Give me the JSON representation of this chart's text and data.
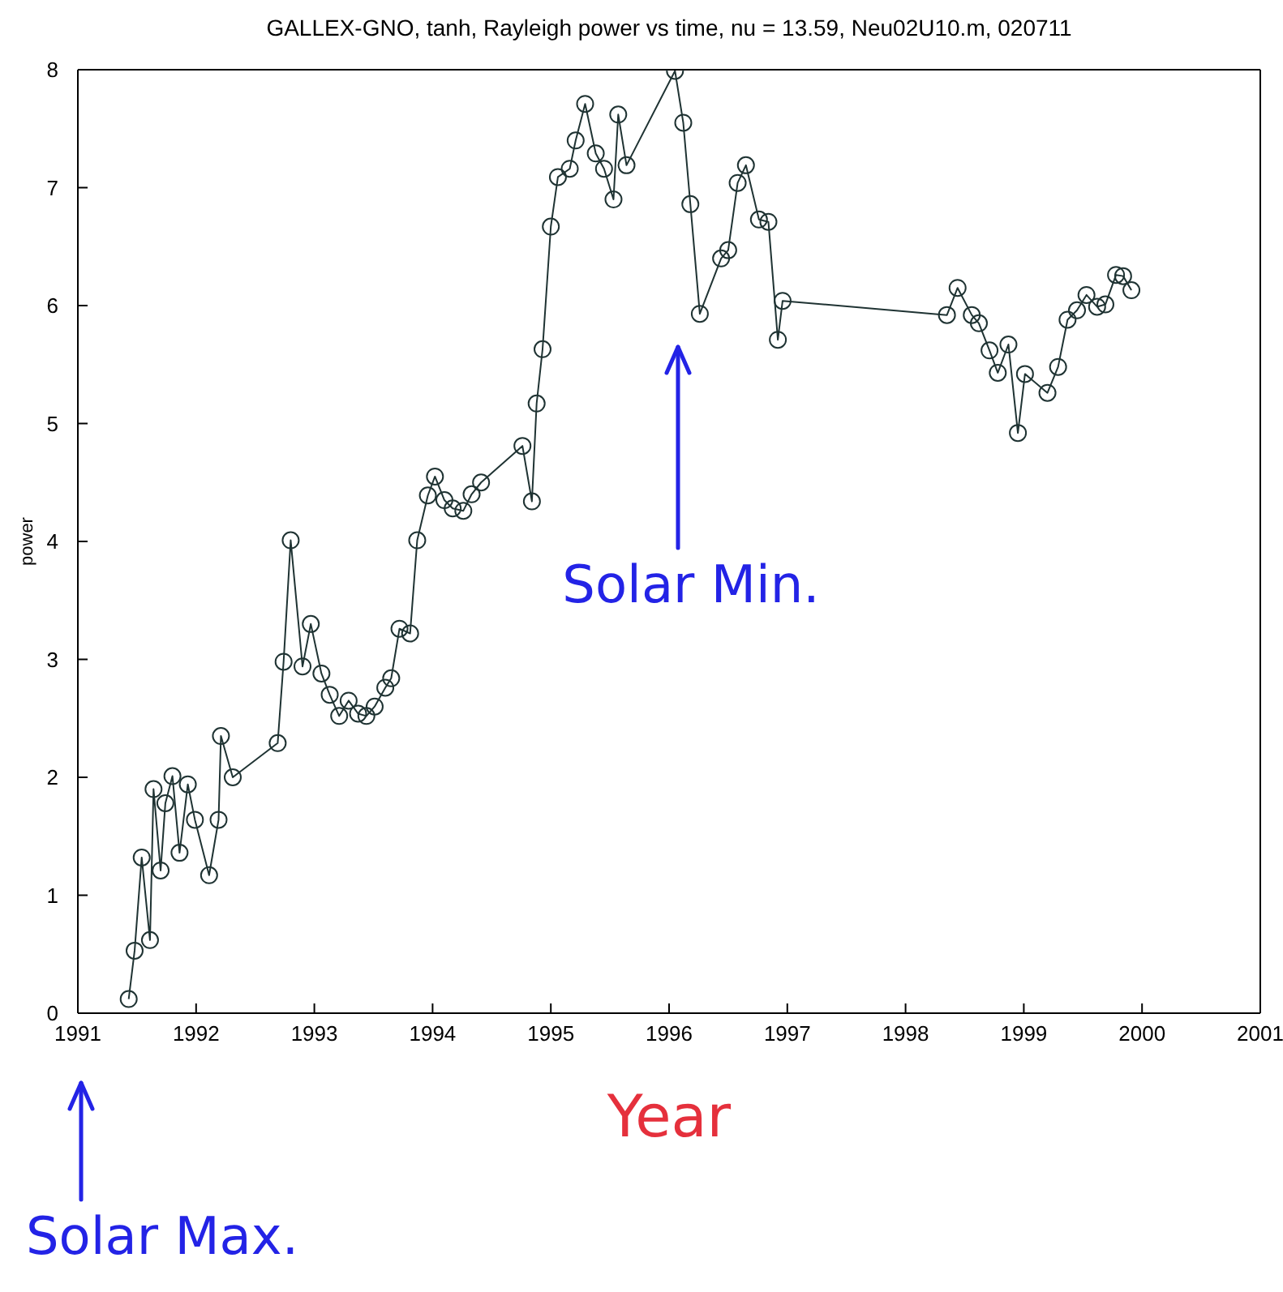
{
  "chart_data": {
    "type": "line",
    "title": "GALLEX-GNO, tanh, Rayleigh power vs time, nu = 13.59, Neu02U10.m, 020711",
    "xlabel": "Year",
    "ylabel": "power",
    "x": [
      1991.43,
      1991.48,
      1991.54,
      1991.61,
      1991.64,
      1991.7,
      1991.74,
      1991.8,
      1991.86,
      1991.93,
      1991.99,
      1992.11,
      1992.19,
      1992.21,
      1992.31,
      1992.69,
      1992.74,
      1992.8,
      1992.9,
      1992.97,
      1993.06,
      1993.13,
      1993.21,
      1993.29,
      1993.37,
      1993.44,
      1993.51,
      1993.6,
      1993.65,
      1993.72,
      1993.81,
      1993.87,
      1993.96,
      1994.02,
      1994.1,
      1994.17,
      1994.26,
      1994.33,
      1994.41,
      1994.76,
      1994.84,
      1994.88,
      1994.93,
      1995.0,
      1995.06,
      1995.16,
      1995.21,
      1995.29,
      1995.38,
      1995.45,
      1995.53,
      1995.57,
      1995.64,
      1996.05,
      1996.12,
      1996.18,
      1996.26,
      1996.44,
      1996.5,
      1996.58,
      1996.65,
      1996.76,
      1996.84,
      1996.92,
      1996.96,
      1998.35,
      1998.44,
      1998.56,
      1998.62,
      1998.71,
      1998.78,
      1998.87,
      1998.95,
      1999.01,
      1999.2,
      1999.29,
      1999.37,
      1999.45,
      1999.53,
      1999.62,
      1999.69,
      1999.78,
      1999.84,
      1999.91
    ],
    "series": [
      {
        "color": "#1f3333",
        "values": [
          0.12,
          0.53,
          1.32,
          0.62,
          1.9,
          1.21,
          1.78,
          2.01,
          1.36,
          1.94,
          1.64,
          1.17,
          1.64,
          2.35,
          2.0,
          2.29,
          2.98,
          4.01,
          2.94,
          3.3,
          2.88,
          2.7,
          2.52,
          2.65,
          2.54,
          2.52,
          2.6,
          2.76,
          2.84,
          3.26,
          3.22,
          4.01,
          4.39,
          4.55,
          4.35,
          4.28,
          4.26,
          4.4,
          4.5,
          4.81,
          4.34,
          5.17,
          5.63,
          6.67,
          7.09,
          7.16,
          7.4,
          7.71,
          7.29,
          7.16,
          6.9,
          7.62,
          7.19,
          7.99,
          7.55,
          6.86,
          5.93,
          6.4,
          6.47,
          7.04,
          7.19,
          6.73,
          6.71,
          5.71,
          6.04,
          5.92,
          6.15,
          5.92,
          5.85,
          5.62,
          5.43,
          5.67,
          4.92,
          5.42,
          5.26,
          5.48,
          5.88,
          5.96,
          6.09,
          5.99,
          6.01,
          6.26,
          6.25,
          6.13
        ]
      }
    ],
    "xlim": [
      1991,
      2001
    ],
    "xticks": [
      1991,
      1992,
      1993,
      1994,
      1995,
      1996,
      1997,
      1998,
      1999,
      2000,
      2001
    ],
    "ylim": [
      0,
      8
    ],
    "yticks": [
      0,
      1,
      2,
      3,
      4,
      5,
      6,
      7,
      8
    ],
    "marker": "circle",
    "line_style": "solid",
    "annotations": [
      "Solar Min.",
      "Solar Max."
    ]
  }
}
